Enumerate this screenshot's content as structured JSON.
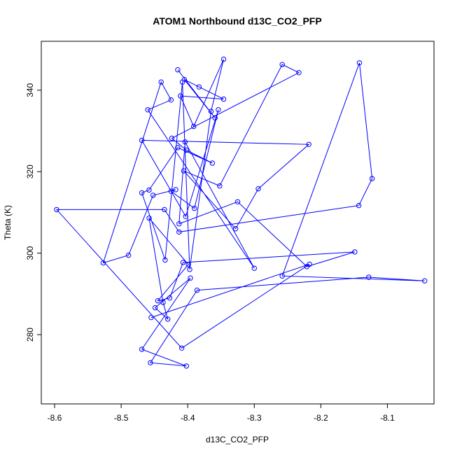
{
  "chart_data": {
    "type": "scatter",
    "title": "ATOM1 Northbound d13C_CO2_PFP",
    "xlabel": "d13C_CO2_PFP",
    "ylabel": "Theta (K)",
    "xlim": [
      -8.62,
      -8.03
    ],
    "ylim": [
      263,
      352
    ],
    "x_ticks": [
      -8.6,
      -8.5,
      -8.4,
      -8.3,
      -8.2,
      -8.1
    ],
    "y_ticks": [
      280,
      300,
      320,
      340
    ],
    "x_tick_labels": [
      "-8.6",
      "-8.5",
      "-8.4",
      "-8.3",
      "-8.2",
      "-8.1"
    ],
    "y_tick_labels": [
      "280",
      "300",
      "320",
      "340"
    ],
    "grid": false,
    "lines_connect_points": true,
    "series_color": "#0000ff",
    "x": [
      -8.415,
      -8.359,
      -8.405,
      -8.383,
      -8.346,
      -8.411,
      -8.391,
      -8.346,
      -8.365,
      -8.397,
      -8.408,
      -8.434,
      -8.469,
      -8.458,
      -8.415,
      -8.363,
      -8.402,
      -8.424,
      -8.233,
      -8.258,
      -8.352,
      -8.406,
      -8.328,
      -8.294,
      -8.218,
      -8.469,
      -8.403,
      -8.354,
      -8.39,
      -8.425,
      -8.418,
      -8.452,
      -8.489,
      -8.527,
      -8.44,
      -8.425,
      -8.46,
      -8.3,
      -8.404,
      -8.413,
      -8.325,
      -8.221,
      -8.149,
      -8.407,
      -8.427,
      -8.445,
      -8.399,
      -8.458,
      -8.437,
      -8.43,
      -8.449,
      -8.396,
      -8.469,
      -8.402,
      -8.456,
      -8.386,
      -8.128,
      -8.044,
      -8.258,
      -8.142,
      -8.123,
      -8.143,
      -8.413,
      -8.435,
      -8.597,
      -8.409,
      -8.217,
      -8.455
    ],
    "y": [
      345.0,
      333.2,
      342.6,
      340.8,
      337.8,
      338.6,
      331.1,
      347.6,
      334.8,
      296.0,
      342.0,
      298.3,
      314.8,
      315.5,
      325.9,
      322.1,
      325.3,
      328.2,
      344.3,
      346.3,
      316.5,
      320.2,
      306.0,
      315.8,
      326.7,
      327.7,
      309.0,
      335.2,
      311.0,
      315.2,
      315.6,
      314.2,
      299.5,
      297.6,
      342.0,
      337.6,
      335.2,
      296.3,
      327.3,
      307.2,
      312.6,
      296.7,
      300.3,
      297.7,
      289.0,
      288.3,
      297.2,
      308.6,
      287.9,
      283.8,
      286.6,
      293.9,
      276.4,
      272.3,
      273.1,
      290.9,
      294.1,
      293.2,
      294.4,
      346.7,
      318.3,
      311.7,
      305.2,
      310.7,
      310.7,
      276.7,
      297.3,
      284.2
    ]
  }
}
